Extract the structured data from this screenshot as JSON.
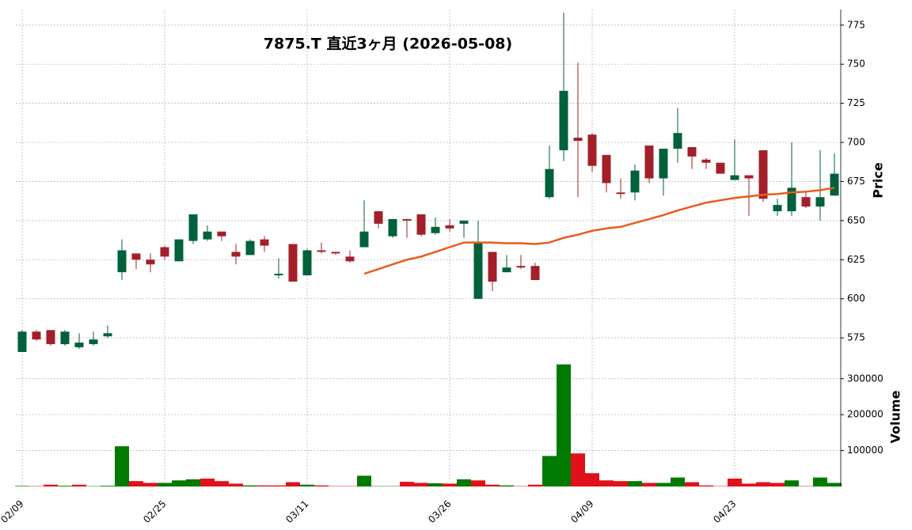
{
  "chart_data": {
    "type": "candlestick",
    "title": "7875.T  直近3ヶ月  (2026-05-08)",
    "categories": [
      "02/09",
      null,
      null,
      null,
      null,
      null,
      null,
      null,
      null,
      null,
      "02/25",
      null,
      null,
      null,
      null,
      null,
      null,
      null,
      null,
      null,
      "03/11",
      null,
      null,
      null,
      null,
      null,
      null,
      null,
      null,
      null,
      "03/26",
      null,
      null,
      null,
      null,
      null,
      null,
      null,
      null,
      null,
      "04/09",
      null,
      null,
      null,
      null,
      null,
      null,
      null,
      null,
      null,
      "04/23",
      null,
      null,
      null,
      null,
      null,
      null,
      null
    ],
    "open": [
      566,
      579,
      580,
      571,
      569,
      571,
      576,
      617,
      629,
      625,
      633,
      624,
      637,
      638,
      643,
      630,
      628,
      638,
      615,
      635,
      615,
      631,
      630,
      627,
      633,
      656,
      640,
      651,
      654,
      642,
      647,
      648,
      600,
      630,
      617,
      621,
      621,
      665,
      695,
      703,
      705,
      692,
      668,
      668,
      698,
      677,
      696,
      697,
      689,
      687,
      676,
      679,
      695,
      656,
      656,
      665,
      659,
      666
    ],
    "high": [
      580,
      580,
      580,
      580,
      578,
      579,
      583,
      638,
      629,
      629,
      634,
      638,
      654,
      647,
      643,
      635,
      638,
      640,
      626,
      635,
      632,
      636,
      630,
      631,
      663,
      656,
      651,
      651,
      654,
      652,
      651,
      650,
      650,
      630,
      628,
      628,
      623,
      698,
      783,
      751,
      706,
      692,
      677,
      686,
      698,
      696,
      722,
      697,
      690,
      687,
      702,
      679,
      695,
      664,
      700,
      668,
      695,
      693
    ],
    "low": [
      566,
      573,
      570,
      570,
      568,
      570,
      575,
      612,
      619,
      617,
      625,
      624,
      635,
      637,
      637,
      622,
      628,
      630,
      613,
      611,
      615,
      629,
      628,
      623,
      633,
      645,
      639,
      639,
      640,
      641,
      643,
      639,
      600,
      605,
      617,
      619,
      612,
      664,
      688,
      665,
      681,
      668,
      664,
      663,
      674,
      666,
      687,
      683,
      683,
      680,
      676,
      653,
      662,
      653,
      653,
      658,
      650,
      666
    ],
    "close": [
      579,
      574,
      571,
      579,
      572,
      574,
      578,
      631,
      625,
      622,
      627,
      638,
      654,
      643,
      640,
      627,
      637,
      634,
      616,
      611,
      631,
      630,
      629,
      624,
      643,
      648,
      651,
      650,
      641,
      646,
      645,
      650,
      636,
      611,
      620,
      620,
      612,
      683,
      733,
      701,
      685,
      674,
      667,
      682,
      677,
      696,
      706,
      691,
      687,
      680,
      679,
      677,
      664,
      660,
      671,
      659,
      665,
      680
    ],
    "up_color": "#00613a",
    "down_color": "#a31f29",
    "ylim": [
      568,
      785
    ],
    "yticks": [
      575,
      600,
      625,
      650,
      675,
      700,
      725,
      750,
      775
    ],
    "ylabel": "Price",
    "grid": true,
    "moving_average": {
      "color": "#ea5b1c",
      "values": [
        null,
        null,
        null,
        null,
        null,
        null,
        null,
        null,
        null,
        null,
        null,
        null,
        null,
        null,
        null,
        null,
        null,
        null,
        null,
        null,
        null,
        null,
        null,
        null,
        616,
        619,
        622,
        625,
        627,
        630,
        633,
        636,
        636,
        636,
        635.5,
        635.5,
        635,
        636,
        639,
        641,
        643.5,
        645,
        646,
        648.5,
        651,
        653.5,
        656.5,
        659,
        661.5,
        663,
        664.5,
        665.5,
        666.5,
        667,
        668,
        668.5,
        669.5,
        671
      ]
    },
    "volume": {
      "label": "Volume",
      "ylim": [
        0,
        370000
      ],
      "yticks": [
        100000,
        200000,
        300000
      ],
      "values": [
        1500,
        1000,
        5000,
        2000,
        5000,
        1000,
        2000,
        112000,
        15000,
        10000,
        10000,
        17000,
        20000,
        22000,
        15000,
        8000,
        3000,
        3000,
        3000,
        12000,
        5000,
        3000,
        1000,
        1000,
        30000,
        1000,
        1000,
        13000,
        10000,
        9000,
        8000,
        20000,
        17000,
        5000,
        3000,
        1000,
        5000,
        85000,
        340000,
        92000,
        37000,
        17000,
        15000,
        15000,
        10000,
        10000,
        25000,
        12000,
        3000,
        1000,
        22000,
        8000,
        12000,
        10000,
        17000,
        1000,
        25000,
        10000
      ],
      "colors": [
        "#007a00",
        "#e0111b",
        "#e0111b",
        "#007a00",
        "#e0111b",
        "#007a00",
        "#007a00",
        "#007a00",
        "#e0111b",
        "#e0111b",
        "#007a00",
        "#007a00",
        "#007a00",
        "#e0111b",
        "#e0111b",
        "#e0111b",
        "#007a00",
        "#e0111b",
        "#e0111b",
        "#e0111b",
        "#007a00",
        "#e0111b",
        "#e0111b",
        "#e0111b",
        "#007a00",
        "#007a00",
        "#007a00",
        "#e0111b",
        "#e0111b",
        "#007a00",
        "#e0111b",
        "#007a00",
        "#e0111b",
        "#e0111b",
        "#007a00",
        "#e0111b",
        "#e0111b",
        "#007a00",
        "#007a00",
        "#e0111b",
        "#e0111b",
        "#e0111b",
        "#e0111b",
        "#007a00",
        "#e0111b",
        "#007a00",
        "#007a00",
        "#e0111b",
        "#e0111b",
        "#e0111b",
        "#e0111b",
        "#e0111b",
        "#e0111b",
        "#e0111b",
        "#007a00",
        "#e0111b",
        "#007a00",
        "#007a00"
      ]
    }
  }
}
